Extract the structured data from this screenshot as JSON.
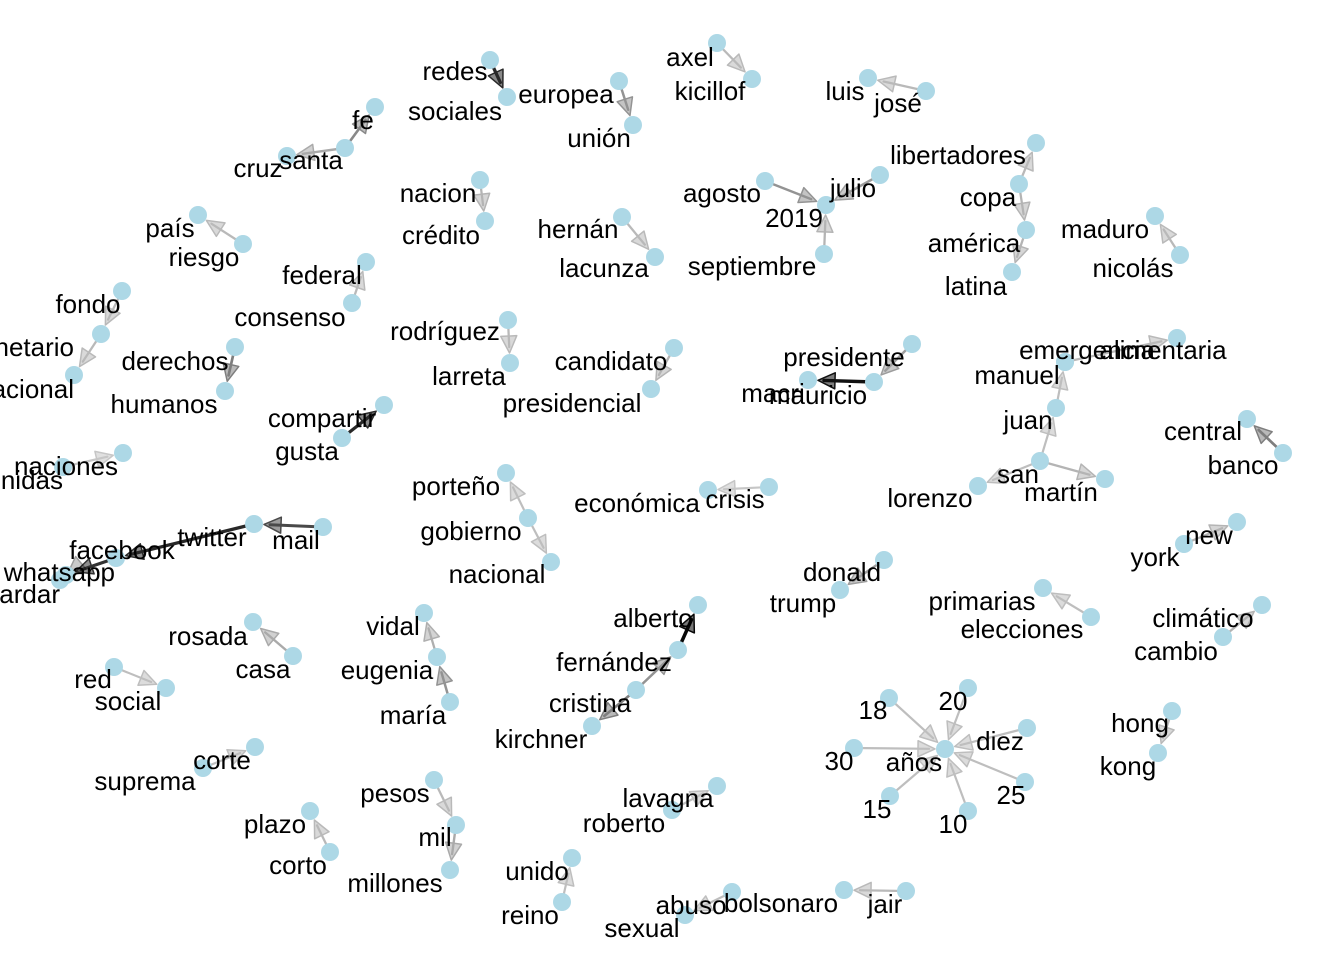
{
  "nodes": [
    {
      "id": "redes",
      "label": "redes"
    },
    {
      "id": "sociales",
      "label": "sociales"
    },
    {
      "id": "europea",
      "label": "europea"
    },
    {
      "id": "union",
      "label": "unión"
    },
    {
      "id": "axel",
      "label": "axel"
    },
    {
      "id": "kicillof",
      "label": "kicillof"
    },
    {
      "id": "luis",
      "label": "luis"
    },
    {
      "id": "jose",
      "label": "josé"
    },
    {
      "id": "fe",
      "label": "fe"
    },
    {
      "id": "santa",
      "label": "santa"
    },
    {
      "id": "cruz",
      "label": "cruz"
    },
    {
      "id": "nacion",
      "label": "nacion"
    },
    {
      "id": "credito",
      "label": "crédito"
    },
    {
      "id": "agosto",
      "label": "agosto"
    },
    {
      "id": "julio",
      "label": "julio"
    },
    {
      "id": "y2019",
      "label": "2019"
    },
    {
      "id": "septiembre",
      "label": "septiembre"
    },
    {
      "id": "libertadores",
      "label": "libertadores"
    },
    {
      "id": "copa",
      "label": "copa"
    },
    {
      "id": "america",
      "label": "américa"
    },
    {
      "id": "latina",
      "label": "latina"
    },
    {
      "id": "maduro",
      "label": "maduro"
    },
    {
      "id": "nicolas",
      "label": "nicolás"
    },
    {
      "id": "pais",
      "label": "país"
    },
    {
      "id": "riesgo",
      "label": "riesgo"
    },
    {
      "id": "hernan",
      "label": "hernán"
    },
    {
      "id": "lacunza",
      "label": "lacunza"
    },
    {
      "id": "federal",
      "label": "federal"
    },
    {
      "id": "consenso",
      "label": "consenso"
    },
    {
      "id": "fondo",
      "label": "fondo"
    },
    {
      "id": "monetario",
      "label": "monetario"
    },
    {
      "id": "internacional",
      "label": "internacional"
    },
    {
      "id": "derechos",
      "label": "derechos"
    },
    {
      "id": "humanos",
      "label": "humanos"
    },
    {
      "id": "rodriguez",
      "label": "rodríguez"
    },
    {
      "id": "larreta",
      "label": "larreta"
    },
    {
      "id": "candidato",
      "label": "candidato"
    },
    {
      "id": "presidencial",
      "label": "presidencial"
    },
    {
      "id": "presidente",
      "label": "presidente"
    },
    {
      "id": "mauricio",
      "label": "mauricio"
    },
    {
      "id": "macri",
      "label": "macri"
    },
    {
      "id": "emergencia",
      "label": "emergencia"
    },
    {
      "id": "alimentaria",
      "label": "alimentaria"
    },
    {
      "id": "manuel",
      "label": "manuel"
    },
    {
      "id": "juan",
      "label": "juan"
    },
    {
      "id": "san",
      "label": "san"
    },
    {
      "id": "lorenzo",
      "label": "lorenzo"
    },
    {
      "id": "martin",
      "label": "martín"
    },
    {
      "id": "central",
      "label": "central"
    },
    {
      "id": "banco",
      "label": "banco"
    },
    {
      "id": "compartir",
      "label": "compartir"
    },
    {
      "id": "gusta",
      "label": "gusta"
    },
    {
      "id": "naciones",
      "label": "naciones"
    },
    {
      "id": "unidas",
      "label": "unidas"
    },
    {
      "id": "porteno",
      "label": "porteño"
    },
    {
      "id": "gobierno",
      "label": "gobierno"
    },
    {
      "id": "nacional",
      "label": "nacional"
    },
    {
      "id": "economica",
      "label": "económica"
    },
    {
      "id": "crisis",
      "label": "crisis"
    },
    {
      "id": "mail",
      "label": "mail"
    },
    {
      "id": "twitter",
      "label": "twitter"
    },
    {
      "id": "facebook",
      "label": "facebook"
    },
    {
      "id": "whatsapp",
      "label": "whatsapp"
    },
    {
      "id": "guardar",
      "label": "guardar"
    },
    {
      "id": "new",
      "label": "new"
    },
    {
      "id": "york",
      "label": "york"
    },
    {
      "id": "donald",
      "label": "donald"
    },
    {
      "id": "trump",
      "label": "trump"
    },
    {
      "id": "primarias",
      "label": "primarias"
    },
    {
      "id": "elecciones",
      "label": "elecciones"
    },
    {
      "id": "climatico",
      "label": "climático"
    },
    {
      "id": "cambio",
      "label": "cambio"
    },
    {
      "id": "rosada",
      "label": "rosada"
    },
    {
      "id": "casa",
      "label": "casa"
    },
    {
      "id": "vidal",
      "label": "vidal"
    },
    {
      "id": "eugenia",
      "label": "eugenia"
    },
    {
      "id": "maria",
      "label": "maría"
    },
    {
      "id": "alberto",
      "label": "alberto"
    },
    {
      "id": "fernandez",
      "label": "fernández"
    },
    {
      "id": "cristina",
      "label": "cristina"
    },
    {
      "id": "kirchner",
      "label": "kirchner"
    },
    {
      "id": "red",
      "label": "red"
    },
    {
      "id": "social",
      "label": "social"
    },
    {
      "id": "n18",
      "label": "18"
    },
    {
      "id": "n20",
      "label": "20"
    },
    {
      "id": "diez",
      "label": "diez"
    },
    {
      "id": "n30",
      "label": "30"
    },
    {
      "id": "anos",
      "label": "años"
    },
    {
      "id": "n15",
      "label": "15"
    },
    {
      "id": "n25",
      "label": "25"
    },
    {
      "id": "n10",
      "label": "10"
    },
    {
      "id": "hong",
      "label": "hong"
    },
    {
      "id": "kong",
      "label": "kong"
    },
    {
      "id": "corte",
      "label": "corte"
    },
    {
      "id": "suprema",
      "label": "suprema"
    },
    {
      "id": "pesos",
      "label": "pesos"
    },
    {
      "id": "mil",
      "label": "mil"
    },
    {
      "id": "millones",
      "label": "millones"
    },
    {
      "id": "plazo",
      "label": "plazo"
    },
    {
      "id": "corto",
      "label": "corto"
    },
    {
      "id": "lavagna",
      "label": "lavagna"
    },
    {
      "id": "roberto",
      "label": "roberto"
    },
    {
      "id": "unido",
      "label": "unido"
    },
    {
      "id": "reino",
      "label": "reino"
    },
    {
      "id": "abuso",
      "label": "abuso"
    },
    {
      "id": "sexual",
      "label": "sexual"
    },
    {
      "id": "bolsonaro",
      "label": "bolsonaro"
    },
    {
      "id": "jair",
      "label": "jair"
    }
  ],
  "edges": [
    {
      "from": "redes",
      "to": "sociales",
      "weight": 0.85
    },
    {
      "from": "europea",
      "to": "union",
      "weight": 0.35
    },
    {
      "from": "axel",
      "to": "kicillof",
      "weight": 0.18
    },
    {
      "from": "jose",
      "to": "luis",
      "weight": 0.18
    },
    {
      "from": "santa",
      "to": "fe",
      "weight": 0.4
    },
    {
      "from": "santa",
      "to": "cruz",
      "weight": 0.25
    },
    {
      "from": "nacion",
      "to": "credito",
      "weight": 0.2
    },
    {
      "from": "agosto",
      "to": "y2019",
      "weight": 0.35
    },
    {
      "from": "julio",
      "to": "y2019",
      "weight": 0.3
    },
    {
      "from": "septiembre",
      "to": "y2019",
      "weight": 0.2
    },
    {
      "from": "copa",
      "to": "libertadores",
      "weight": 0.18
    },
    {
      "from": "copa",
      "to": "america",
      "weight": 0.2
    },
    {
      "from": "america",
      "to": "latina",
      "weight": 0.2
    },
    {
      "from": "nicolas",
      "to": "maduro",
      "weight": 0.18
    },
    {
      "from": "riesgo",
      "to": "pais",
      "weight": 0.18
    },
    {
      "from": "hernan",
      "to": "lacunza",
      "weight": 0.18
    },
    {
      "from": "consenso",
      "to": "federal",
      "weight": 0.18
    },
    {
      "from": "fondo",
      "to": "monetario",
      "weight": 0.18
    },
    {
      "from": "monetario",
      "to": "internacional",
      "weight": 0.18
    },
    {
      "from": "derechos",
      "to": "humanos",
      "weight": 0.45
    },
    {
      "from": "rodriguez",
      "to": "larreta",
      "weight": 0.18
    },
    {
      "from": "candidato",
      "to": "presidencial",
      "weight": 0.2
    },
    {
      "from": "mauricio",
      "to": "macri",
      "weight": 0.95
    },
    {
      "from": "presidente",
      "to": "mauricio",
      "weight": 0.3
    },
    {
      "from": "emergencia",
      "to": "alimentaria",
      "weight": 0.18
    },
    {
      "from": "juan",
      "to": "manuel",
      "weight": 0.15
    },
    {
      "from": "san",
      "to": "juan",
      "weight": 0.15
    },
    {
      "from": "san",
      "to": "lorenzo",
      "weight": 0.15
    },
    {
      "from": "san",
      "to": "martin",
      "weight": 0.2
    },
    {
      "from": "banco",
      "to": "central",
      "weight": 0.45
    },
    {
      "from": "gusta",
      "to": "compartir",
      "weight": 0.85
    },
    {
      "from": "unidas",
      "to": "naciones",
      "weight": 0.12
    },
    {
      "from": "gobierno",
      "to": "porteno",
      "weight": 0.15
    },
    {
      "from": "gobierno",
      "to": "nacional",
      "weight": 0.15
    },
    {
      "from": "crisis",
      "to": "economica",
      "weight": 0.12
    },
    {
      "from": "mail",
      "to": "twitter",
      "weight": 0.7
    },
    {
      "from": "twitter",
      "to": "facebook",
      "weight": 0.85
    },
    {
      "from": "facebook",
      "to": "whatsapp",
      "weight": 0.8
    },
    {
      "from": "whatsapp",
      "to": "guardar",
      "weight": 0.3
    },
    {
      "from": "york",
      "to": "new",
      "weight": 0.2
    },
    {
      "from": "donald",
      "to": "trump",
      "weight": 0.3
    },
    {
      "from": "elecciones",
      "to": "primarias",
      "weight": 0.15
    },
    {
      "from": "cambio",
      "to": "climatico",
      "weight": 0.2
    },
    {
      "from": "casa",
      "to": "rosada",
      "weight": 0.25
    },
    {
      "from": "eugenia",
      "to": "vidal",
      "weight": 0.22
    },
    {
      "from": "maria",
      "to": "eugenia",
      "weight": 0.35
    },
    {
      "from": "fernandez",
      "to": "alberto",
      "weight": 1.0
    },
    {
      "from": "cristina",
      "to": "fernandez",
      "weight": 0.35
    },
    {
      "from": "cristina",
      "to": "kirchner",
      "weight": 0.45
    },
    {
      "from": "red",
      "to": "social",
      "weight": 0.15
    },
    {
      "from": "n18",
      "to": "anos",
      "weight": 0.15
    },
    {
      "from": "n20",
      "to": "anos",
      "weight": 0.15
    },
    {
      "from": "diez",
      "to": "anos",
      "weight": 0.15
    },
    {
      "from": "n30",
      "to": "anos",
      "weight": 0.15
    },
    {
      "from": "n15",
      "to": "anos",
      "weight": 0.15
    },
    {
      "from": "n25",
      "to": "anos",
      "weight": 0.15
    },
    {
      "from": "n10",
      "to": "anos",
      "weight": 0.15
    },
    {
      "from": "hong",
      "to": "kong",
      "weight": 0.18
    },
    {
      "from": "suprema",
      "to": "corte",
      "weight": 0.15
    },
    {
      "from": "pesos",
      "to": "mil",
      "weight": 0.18
    },
    {
      "from": "mil",
      "to": "millones",
      "weight": 0.25
    },
    {
      "from": "corto",
      "to": "plazo",
      "weight": 0.18
    },
    {
      "from": "roberto",
      "to": "lavagna",
      "weight": 0.15
    },
    {
      "from": "reino",
      "to": "unido",
      "weight": 0.15
    },
    {
      "from": "abuso",
      "to": "sexual",
      "weight": 0.15
    },
    {
      "from": "jair",
      "to": "bolsonaro",
      "weight": 0.18
    }
  ]
}
